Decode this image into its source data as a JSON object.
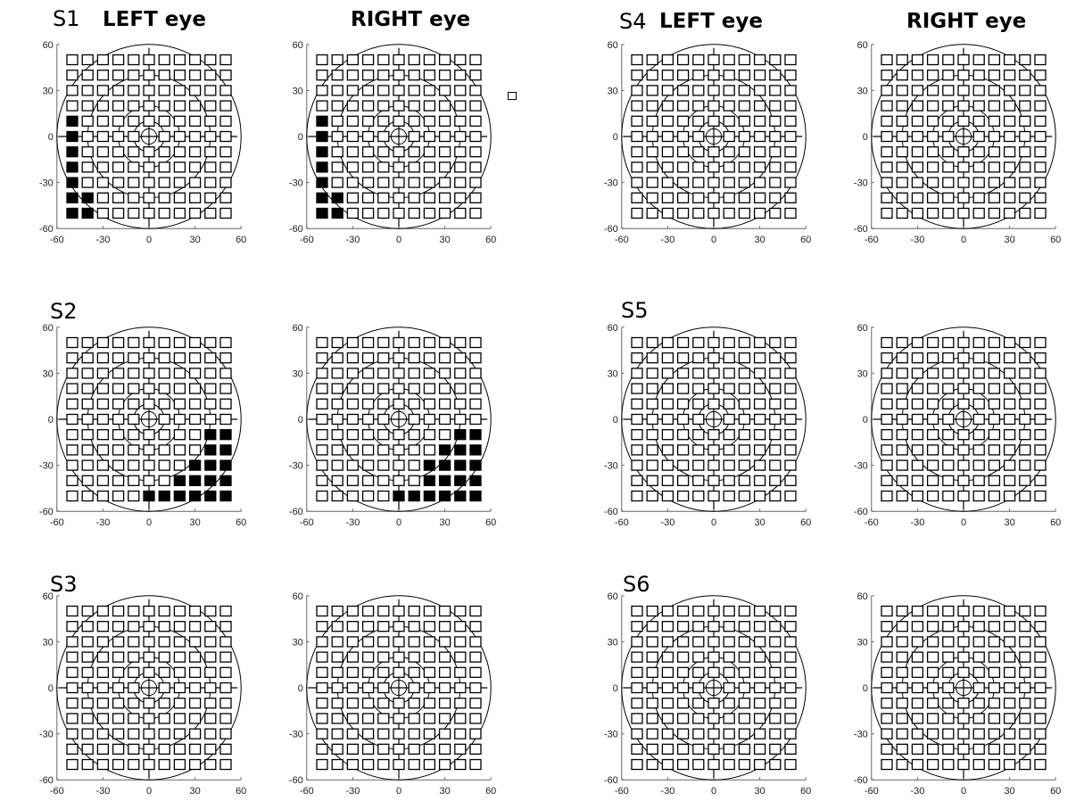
{
  "column_headers": {
    "col1_left": "LEFT eye",
    "col1_right": "RIGHT eye",
    "col2_left": "LEFT eye",
    "col2_right": "RIGHT eye"
  },
  "legend": {
    "marker": "open-square"
  },
  "colors": {
    "missed": "#000000",
    "seen": "#ffffff",
    "axis": "#000000"
  },
  "chart_data": {
    "type": "scatter",
    "description_of_marks": "perimetry test points; filled square = missed, open square = seen",
    "x_axis": {
      "ticks": [
        -60,
        -30,
        0,
        30,
        60
      ],
      "lim": [
        -60,
        60
      ]
    },
    "y_axis": {
      "ticks": [
        60,
        30,
        0,
        -30,
        -60
      ],
      "lim": [
        -60,
        60
      ]
    },
    "grid": {
      "x": [
        -50,
        -40,
        -30,
        -20,
        -10,
        0,
        10,
        20,
        30,
        40,
        50
      ],
      "y": [
        50,
        40,
        30,
        20,
        10,
        0,
        -10,
        -20,
        -30,
        -40,
        -50
      ],
      "missing_points": [
        [
          0,
          0
        ]
      ]
    },
    "isopters": [
      5,
      10,
      20,
      40,
      60
    ],
    "subjects": [
      {
        "id": "S1",
        "left_missed": [
          [
            -50,
            10
          ],
          [
            -50,
            0
          ],
          [
            -50,
            -10
          ],
          [
            -50,
            -20
          ],
          [
            -50,
            -30
          ],
          [
            -50,
            -40
          ],
          [
            -50,
            -50
          ],
          [
            -40,
            -40
          ],
          [
            -40,
            -50
          ]
        ],
        "right_missed": [
          [
            -50,
            10
          ],
          [
            -50,
            0
          ],
          [
            -50,
            -10
          ],
          [
            -50,
            -20
          ],
          [
            -50,
            -30
          ],
          [
            -50,
            -40
          ],
          [
            -50,
            -50
          ],
          [
            -40,
            -40
          ],
          [
            -40,
            -50
          ]
        ]
      },
      {
        "id": "S2",
        "left_missed": [
          [
            40,
            -10
          ],
          [
            50,
            -10
          ],
          [
            40,
            -20
          ],
          [
            50,
            -20
          ],
          [
            30,
            -30
          ],
          [
            40,
            -30
          ],
          [
            50,
            -30
          ],
          [
            20,
            -40
          ],
          [
            30,
            -40
          ],
          [
            40,
            -40
          ],
          [
            50,
            -40
          ],
          [
            0,
            -50
          ],
          [
            10,
            -50
          ],
          [
            20,
            -50
          ],
          [
            30,
            -50
          ],
          [
            40,
            -50
          ],
          [
            50,
            -50
          ]
        ],
        "right_missed": [
          [
            40,
            -10
          ],
          [
            50,
            -10
          ],
          [
            30,
            -20
          ],
          [
            40,
            -20
          ],
          [
            50,
            -20
          ],
          [
            20,
            -30
          ],
          [
            30,
            -30
          ],
          [
            40,
            -30
          ],
          [
            50,
            -30
          ],
          [
            20,
            -40
          ],
          [
            30,
            -40
          ],
          [
            40,
            -40
          ],
          [
            50,
            -40
          ],
          [
            0,
            -50
          ],
          [
            10,
            -50
          ],
          [
            20,
            -50
          ],
          [
            30,
            -50
          ],
          [
            40,
            -50
          ],
          [
            50,
            -50
          ]
        ]
      },
      {
        "id": "S3",
        "left_missed": [],
        "right_missed": []
      },
      {
        "id": "S4",
        "left_missed": [],
        "right_missed": []
      },
      {
        "id": "S5",
        "left_missed": [],
        "right_missed": []
      },
      {
        "id": "S6",
        "left_missed": [],
        "right_missed": []
      }
    ]
  }
}
